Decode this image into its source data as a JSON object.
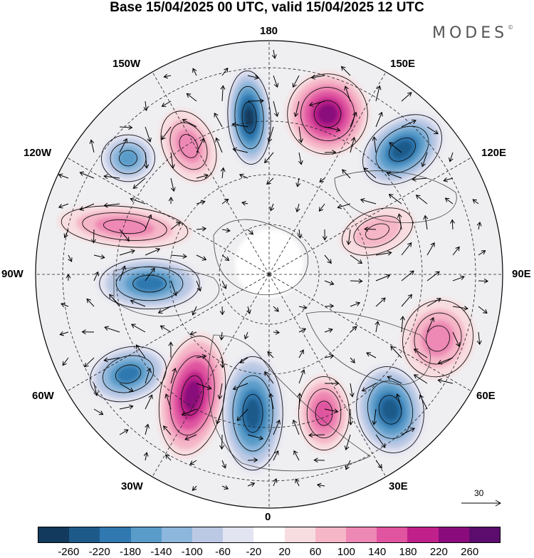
{
  "title": "Base 15/04/2025 00 UTC, valid 15/04/2025 12 UTC",
  "brand": "MODES",
  "brand_mark": "©",
  "map": {
    "projection": "north-polar-stereographic",
    "longitude_labels": {
      "top": "180",
      "bottom": "0",
      "left": "90W",
      "right": "90E",
      "upper_left": "150W",
      "left_upper": "120W",
      "left_lower": "60W",
      "lower_left": "30W",
      "upper_right": "150E",
      "right_upper": "120E",
      "right_lower": "60E",
      "lower_right": "30E"
    },
    "vector_reference": "30",
    "anomaly_centers": [
      {
        "name": "low-near-180-west",
        "sign": "negative",
        "strength": -260
      },
      {
        "name": "high-near-165E",
        "sign": "positive",
        "strength": 260
      },
      {
        "name": "low-near-135E",
        "sign": "negative",
        "strength": -220
      },
      {
        "name": "high-near-150W",
        "sign": "positive",
        "strength": 140
      },
      {
        "name": "low-near-130W",
        "sign": "negative",
        "strength": -140
      },
      {
        "name": "high-near-105W",
        "sign": "positive",
        "strength": 140
      },
      {
        "name": "low-near-90W",
        "sign": "negative",
        "strength": -180
      },
      {
        "name": "low-near-65W",
        "sign": "negative",
        "strength": -180
      },
      {
        "name": "high-near-40W",
        "sign": "positive",
        "strength": 260
      },
      {
        "name": "low-near-0",
        "sign": "negative",
        "strength": -220
      },
      {
        "name": "high-near-20E",
        "sign": "positive",
        "strength": 180
      },
      {
        "name": "low-near-40E",
        "sign": "negative",
        "strength": -220
      },
      {
        "name": "high-near-70E",
        "sign": "positive",
        "strength": 140
      },
      {
        "name": "high-near-110E",
        "sign": "positive",
        "strength": 100
      }
    ]
  },
  "colorbar": {
    "ticks": [
      "-260",
      "-220",
      "-180",
      "-140",
      "-100",
      "-60",
      "-20",
      "20",
      "60",
      "100",
      "140",
      "180",
      "220",
      "260"
    ],
    "colors": [
      "#123a5c",
      "#1d5a8a",
      "#2f78b0",
      "#5a9cc9",
      "#8db7dc",
      "#bcc9e4",
      "#e3e4f2",
      "#ffffff",
      "#f8dde0",
      "#f5b6c8",
      "#ee88b4",
      "#e054a0",
      "#c0208a",
      "#8a0c7c",
      "#5c0c6c"
    ]
  }
}
